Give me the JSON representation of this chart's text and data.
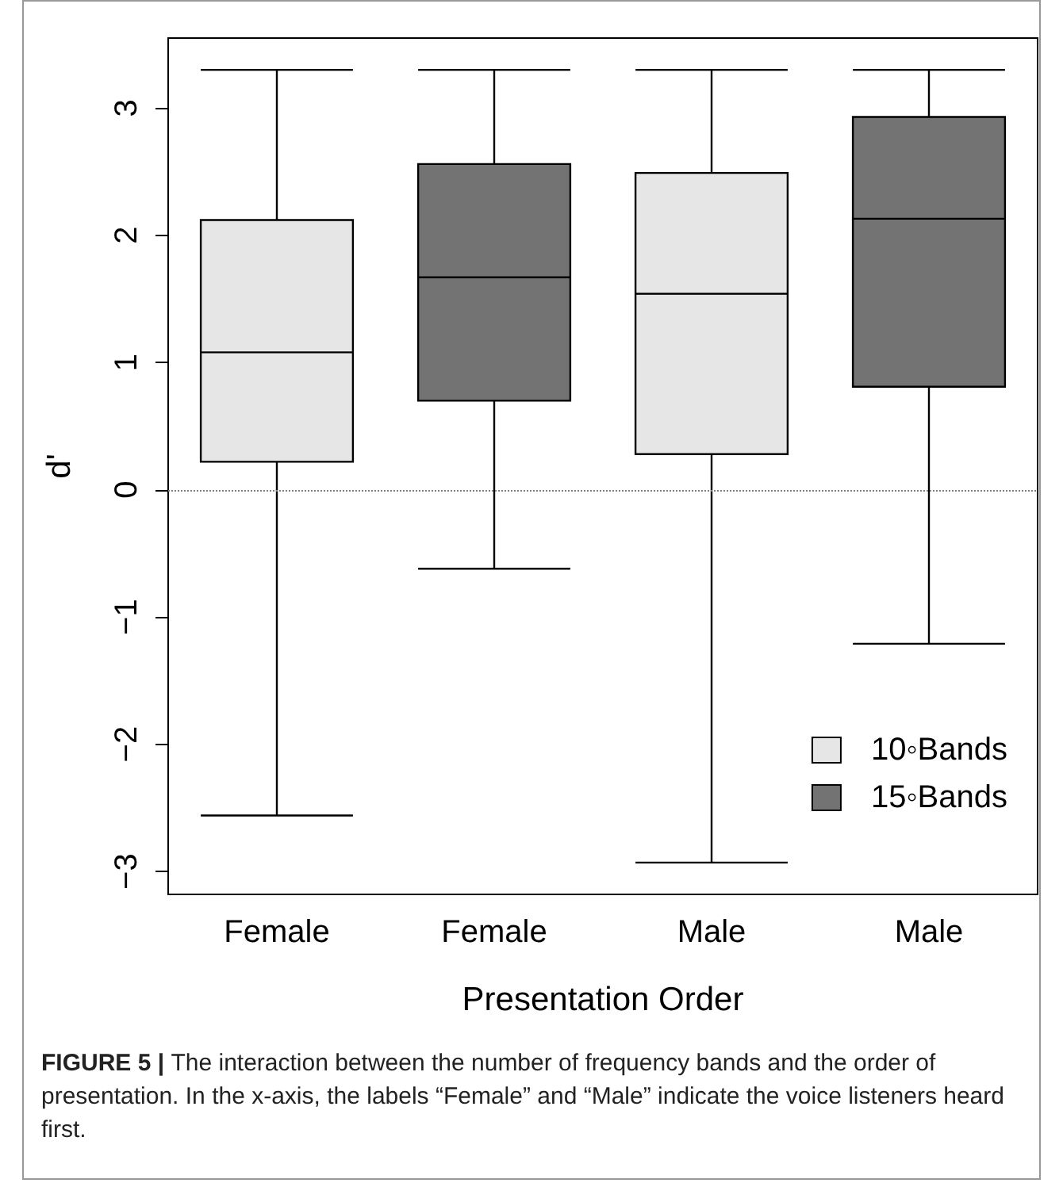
{
  "chart_data": {
    "type": "box",
    "categories": [
      "Female",
      "Female",
      "Male",
      "Male"
    ],
    "xlabel": "Presentation Order",
    "ylabel": "d'",
    "ylim": [
      -3.18,
      3.55
    ],
    "yticks": [
      {
        "value": -3,
        "label": "−3"
      },
      {
        "value": -2,
        "label": "−2"
      },
      {
        "value": -1,
        "label": "−1"
      },
      0,
      1,
      2,
      3
    ],
    "series": [
      {
        "name": "10◦Bands",
        "color": "#e6e6e6",
        "boxes": [
          {
            "low": -2.56,
            "q1": 0.22,
            "median": 1.08,
            "q3": 2.12,
            "high": 3.3
          },
          null,
          {
            "low": -2.93,
            "q1": 0.28,
            "median": 1.54,
            "q3": 2.49,
            "high": 3.3
          },
          null
        ]
      },
      {
        "name": "15◦Bands",
        "color": "#737373",
        "boxes": [
          null,
          {
            "low": -0.62,
            "q1": 0.7,
            "median": 1.67,
            "q3": 2.56,
            "high": 3.3
          },
          null,
          {
            "low": -1.21,
            "q1": 0.81,
            "median": 2.13,
            "q3": 2.93,
            "high": 3.3
          }
        ]
      }
    ],
    "ref_lines": [
      {
        "axis": "y",
        "value": 0,
        "color": "#808080",
        "line_style": "dotted"
      }
    ],
    "legend": "bottom right",
    "grid": false,
    "annotations": [
      "FIGURE 5 |",
      "The interaction between the number of frequency bands and the order of presentation. In the x-axis, the labels “Female” and “Male” indicate the voice listeners heard first."
    ]
  }
}
